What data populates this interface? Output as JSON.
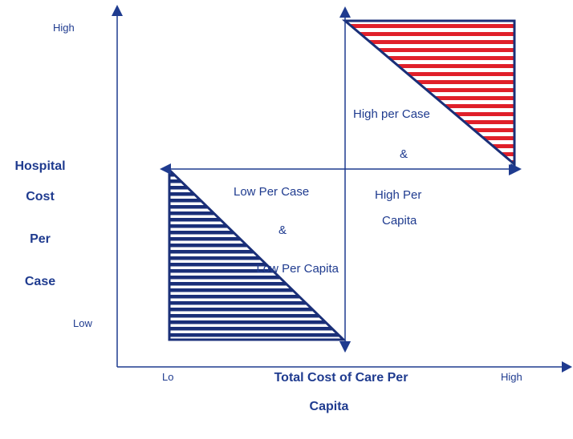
{
  "axes": {
    "y_title": [
      "Hospital",
      "Cost",
      "Per",
      "Case"
    ],
    "y_high": "High",
    "y_low": "Low",
    "x_title_line1": "Total Cost of Care Per",
    "x_title_line2": "Capita",
    "x_low": "Lo",
    "x_high": "High"
  },
  "regions": {
    "high": {
      "line1": "High per Case",
      "amp": "&",
      "line2": "High Per",
      "line3": "Capita"
    },
    "low": {
      "line1": "Low Per Case",
      "amp": "&",
      "line2": "Low Per Capita"
    }
  },
  "colors": {
    "axis": "#1f3b8f",
    "text": "#1f3b8f",
    "high_fill": "#e0202a",
    "low_fill": "#1a2f78"
  }
}
